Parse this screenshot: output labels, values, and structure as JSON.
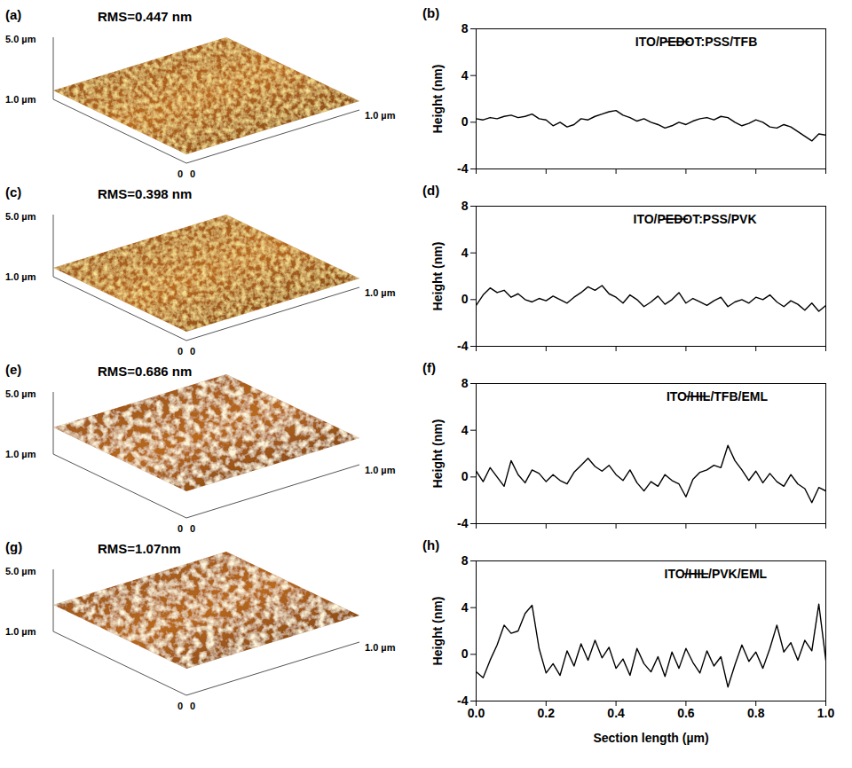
{
  "afm_images": [
    {
      "panel": "(a)",
      "rms": "RMS=0.447 nm",
      "z_axis_label": "5.0 µm",
      "y_axis_label": "1.0 µm",
      "x_axis_label": "1.0 µm",
      "origin_labels": [
        "0",
        "0"
      ]
    },
    {
      "panel": "(c)",
      "rms": "RMS=0.398 nm",
      "z_axis_label": "5.0 µm",
      "y_axis_label": "1.0 µm",
      "x_axis_label": "1.0 µm",
      "origin_labels": [
        "0",
        "0"
      ]
    },
    {
      "panel": "(e)",
      "rms": "RMS=0.686 nm",
      "z_axis_label": "5.0 µm",
      "y_axis_label": "1.0 µm",
      "x_axis_label": "1.0 µm",
      "origin_labels": [
        "0",
        "0"
      ]
    },
    {
      "panel": "(g)",
      "rms": "RMS=1.07nm",
      "z_axis_label": "5.0 µm",
      "y_axis_label": "1.0 µm",
      "x_axis_label": "1.0 µm",
      "origin_labels": [
        "0",
        "0"
      ]
    }
  ],
  "chart_data": [
    {
      "type": "line",
      "title": "(b)",
      "y_label": "Height (nm)",
      "x": [
        0,
        0.02,
        0.04,
        0.06,
        0.08,
        0.1,
        0.12,
        0.14,
        0.16,
        0.18,
        0.2,
        0.22,
        0.24,
        0.26,
        0.28,
        0.3,
        0.32,
        0.34,
        0.36,
        0.38,
        0.4,
        0.42,
        0.44,
        0.46,
        0.48,
        0.5,
        0.52,
        0.54,
        0.56,
        0.58,
        0.6,
        0.62,
        0.64,
        0.66,
        0.68,
        0.7,
        0.72,
        0.74,
        0.76,
        0.78,
        0.8,
        0.82,
        0.84,
        0.86,
        0.88,
        0.9,
        0.92,
        0.94,
        0.96,
        0.98,
        1
      ],
      "series": [
        {
          "name": "ITO/PEDOT:PSS/TFB",
          "color": "#000000",
          "values": [
            0.3,
            0.2,
            0.4,
            0.3,
            0.5,
            0.6,
            0.4,
            0.5,
            0.7,
            0.3,
            0.2,
            -0.3,
            0.0,
            -0.4,
            -0.2,
            0.3,
            0.2,
            0.5,
            0.7,
            0.9,
            1.0,
            0.6,
            0.4,
            0.1,
            0.3,
            0.0,
            -0.2,
            -0.5,
            -0.3,
            0.0,
            -0.2,
            0.1,
            0.3,
            0.4,
            0.2,
            0.5,
            0.4,
            0.0,
            -0.3,
            -0.1,
            0.2,
            0.0,
            -0.4,
            -0.5,
            -0.2,
            -0.4,
            -0.8,
            -1.2,
            -1.6,
            -1.0,
            -1.1
          ]
        }
      ],
      "xlim": [
        0,
        1
      ],
      "xticks": [
        0,
        0.2,
        0.4,
        0.6,
        0.8,
        1
      ],
      "ylim": [
        -4,
        8
      ],
      "yticks": [
        -4,
        0,
        4,
        8
      ],
      "legend": "top-right",
      "tick_labels": "y"
    },
    {
      "type": "line",
      "title": "(d)",
      "y_label": "Height (nm)",
      "x": [
        0,
        0.02,
        0.04,
        0.06,
        0.08,
        0.1,
        0.12,
        0.14,
        0.16,
        0.18,
        0.2,
        0.22,
        0.24,
        0.26,
        0.28,
        0.3,
        0.32,
        0.34,
        0.36,
        0.38,
        0.4,
        0.42,
        0.44,
        0.46,
        0.48,
        0.5,
        0.52,
        0.54,
        0.56,
        0.58,
        0.6,
        0.62,
        0.64,
        0.66,
        0.68,
        0.7,
        0.72,
        0.74,
        0.76,
        0.78,
        0.8,
        0.82,
        0.84,
        0.86,
        0.88,
        0.9,
        0.92,
        0.94,
        0.96,
        0.98,
        1
      ],
      "series": [
        {
          "name": "ITO/PEDOT:PSS/PVK",
          "color": "#000000",
          "values": [
            -0.5,
            0.4,
            1.0,
            0.6,
            0.8,
            0.2,
            0.5,
            0.0,
            -0.2,
            0.1,
            -0.1,
            0.3,
            0.0,
            -0.3,
            0.2,
            0.6,
            1.1,
            0.8,
            1.2,
            0.5,
            0.2,
            -0.3,
            0.4,
            0.0,
            -0.6,
            -0.2,
            0.3,
            -0.4,
            0.0,
            0.6,
            -0.3,
            0.1,
            -0.2,
            -0.5,
            -0.1,
            0.2,
            -0.6,
            -0.2,
            0.0,
            -0.3,
            0.2,
            0.0,
            0.4,
            -0.2,
            -0.6,
            -0.1,
            -0.4,
            -0.9,
            -0.3,
            -1.0,
            -0.5
          ]
        }
      ],
      "xlim": [
        0,
        1
      ],
      "xticks": [
        0,
        0.2,
        0.4,
        0.6,
        0.8,
        1
      ],
      "ylim": [
        -4,
        8
      ],
      "yticks": [
        -4,
        0,
        4,
        8
      ],
      "legend": "top-right",
      "tick_labels": "y"
    },
    {
      "type": "line",
      "title": "(f)",
      "y_label": "Height (nm)",
      "x": [
        0,
        0.02,
        0.04,
        0.06,
        0.08,
        0.1,
        0.12,
        0.14,
        0.16,
        0.18,
        0.2,
        0.22,
        0.24,
        0.26,
        0.28,
        0.3,
        0.32,
        0.34,
        0.36,
        0.38,
        0.4,
        0.42,
        0.44,
        0.46,
        0.48,
        0.5,
        0.52,
        0.54,
        0.56,
        0.58,
        0.6,
        0.62,
        0.64,
        0.66,
        0.68,
        0.7,
        0.72,
        0.74,
        0.76,
        0.78,
        0.8,
        0.82,
        0.84,
        0.86,
        0.88,
        0.9,
        0.92,
        0.94,
        0.96,
        0.98,
        1
      ],
      "series": [
        {
          "name": "ITO/HIL/TFB/EML",
          "color": "#000000",
          "values": [
            0.5,
            -0.4,
            0.8,
            0.0,
            -0.8,
            1.4,
            0.2,
            -0.5,
            0.6,
            0.3,
            -0.4,
            0.2,
            -0.3,
            -0.6,
            0.4,
            1.0,
            1.6,
            0.9,
            0.5,
            1.0,
            0.2,
            -0.3,
            0.6,
            -0.5,
            -1.2,
            -0.4,
            -0.8,
            0.2,
            -0.3,
            -0.6,
            -1.7,
            -0.2,
            0.4,
            0.6,
            1.0,
            0.8,
            2.7,
            1.4,
            0.6,
            -0.3,
            0.5,
            -0.5,
            0.3,
            -0.4,
            -0.8,
            0.2,
            -0.6,
            -1.0,
            -2.2,
            -0.9,
            -1.2
          ]
        }
      ],
      "xlim": [
        0,
        1
      ],
      "xticks": [
        0,
        0.2,
        0.4,
        0.6,
        0.8,
        1
      ],
      "ylim": [
        -4,
        8
      ],
      "yticks": [
        -4,
        0,
        4,
        8
      ],
      "legend": "top-right",
      "tick_labels": "y"
    },
    {
      "type": "line",
      "title": "(h)",
      "y_label": "Height (nm)",
      "x_label": "Section length (µm)",
      "x": [
        0,
        0.02,
        0.04,
        0.06,
        0.08,
        0.1,
        0.12,
        0.14,
        0.16,
        0.18,
        0.2,
        0.22,
        0.24,
        0.26,
        0.28,
        0.3,
        0.32,
        0.34,
        0.36,
        0.38,
        0.4,
        0.42,
        0.44,
        0.46,
        0.48,
        0.5,
        0.52,
        0.54,
        0.56,
        0.58,
        0.6,
        0.62,
        0.64,
        0.66,
        0.68,
        0.7,
        0.72,
        0.74,
        0.76,
        0.78,
        0.8,
        0.82,
        0.84,
        0.86,
        0.88,
        0.9,
        0.92,
        0.94,
        0.96,
        0.98,
        1
      ],
      "series": [
        {
          "name": "ITO/HIL/PVK/EML",
          "color": "#000000",
          "values": [
            -1.5,
            -2.0,
            -0.5,
            0.8,
            2.5,
            1.8,
            2.0,
            3.5,
            4.2,
            0.5,
            -1.6,
            -0.8,
            -1.8,
            0.3,
            -1.0,
            0.9,
            -0.5,
            1.2,
            -0.3,
            0.6,
            -1.2,
            -0.4,
            -1.8,
            0.5,
            -0.8,
            -1.5,
            -0.2,
            -1.9,
            0.2,
            -1.2,
            0.5,
            -0.7,
            -1.6,
            0.3,
            -1.0,
            -0.2,
            -2.8,
            -0.9,
            0.8,
            -0.6,
            0.2,
            -1.2,
            0.5,
            2.5,
            0.2,
            1.0,
            -0.5,
            1.2,
            0.3,
            4.3,
            -0.5
          ]
        }
      ],
      "xlim": [
        0,
        1
      ],
      "xticks": [
        {
          "value": 0,
          "label": "0.0"
        },
        {
          "value": 0.2,
          "label": "0.2"
        },
        {
          "value": 0.4,
          "label": "0.4"
        },
        {
          "value": 0.6,
          "label": "0.6"
        },
        {
          "value": 0.8,
          "label": "0.8"
        },
        {
          "value": 1,
          "label": "1.0"
        }
      ],
      "ylim": [
        -4,
        8
      ],
      "yticks": [
        -4,
        0,
        4,
        8
      ],
      "legend": "top-right"
    }
  ]
}
